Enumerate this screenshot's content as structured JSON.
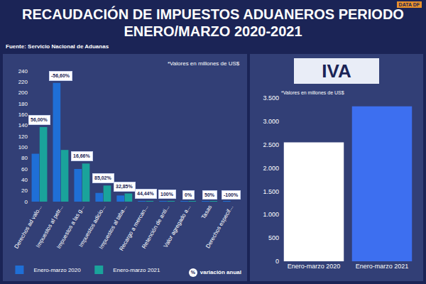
{
  "title": "RECAUDACIÓN DE IMPUESTOS ADUANEROS PERIODO ENERO/MARZO 2020-2021",
  "source": "Fuente: Servicio Nacional de Aduanas",
  "logo": "DATA DF",
  "chart_data": [
    {
      "type": "bar",
      "note": "*Valores en millones de US$",
      "categories": [
        "Derechos ad valo...",
        "Impuestos al petr...",
        "Impuestos a las g...",
        "Impuestos adicio...",
        "Impuestos al taba...",
        "Recargo a mercan...",
        "Retención de anti...",
        "Valor agregado a...",
        "Tasas",
        "Derechos especif..."
      ],
      "series": [
        {
          "name": "Enero-marzo 2020",
          "color": "#1f6fd6",
          "values": [
            88,
            218,
            60,
            16,
            11.3,
            0.9,
            0.5,
            0.3,
            0.2,
            0.1
          ]
        },
        {
          "name": "Enero-marzo 2021",
          "color": "#1aa39b",
          "values": [
            137,
            95,
            70,
            29.6,
            15,
            1.3,
            1,
            0.3,
            0.3,
            0
          ]
        }
      ],
      "variation_labels": [
        "56,00%",
        "-56,60%",
        "16,66%",
        "85,02%",
        "32,85%",
        "44,44%",
        "100%",
        "0%",
        "50%",
        "-100%"
      ],
      "variation_legend": {
        "symbol": "%",
        "label": "variación anual"
      },
      "ylim": [
        0,
        240
      ],
      "yticks": [
        0,
        20,
        40,
        60,
        80,
        100,
        120,
        140,
        160,
        180,
        200,
        220,
        240
      ],
      "grid": false,
      "legend": "bottom"
    },
    {
      "type": "bar",
      "title": "IVA",
      "note": "*Valores en millones de US$",
      "categories": [
        "Enero-marzo 2020",
        "Enero-marzo 2021"
      ],
      "values": [
        2550,
        3320
      ],
      "colors": [
        "#ffffff",
        "#3d6ff0"
      ],
      "ylim": [
        0,
        3500
      ],
      "yticks": [
        0,
        500,
        {
          "value": 1000,
          "label": "1.000"
        },
        {
          "value": 1500,
          "label": "1.500"
        },
        {
          "value": 2000,
          "label": "2.000"
        },
        {
          "value": 2500,
          "label": "2.500"
        },
        {
          "value": 3000,
          "label": "3.000"
        },
        {
          "value": 3500,
          "label": "3.500"
        }
      ],
      "grid": false
    }
  ]
}
